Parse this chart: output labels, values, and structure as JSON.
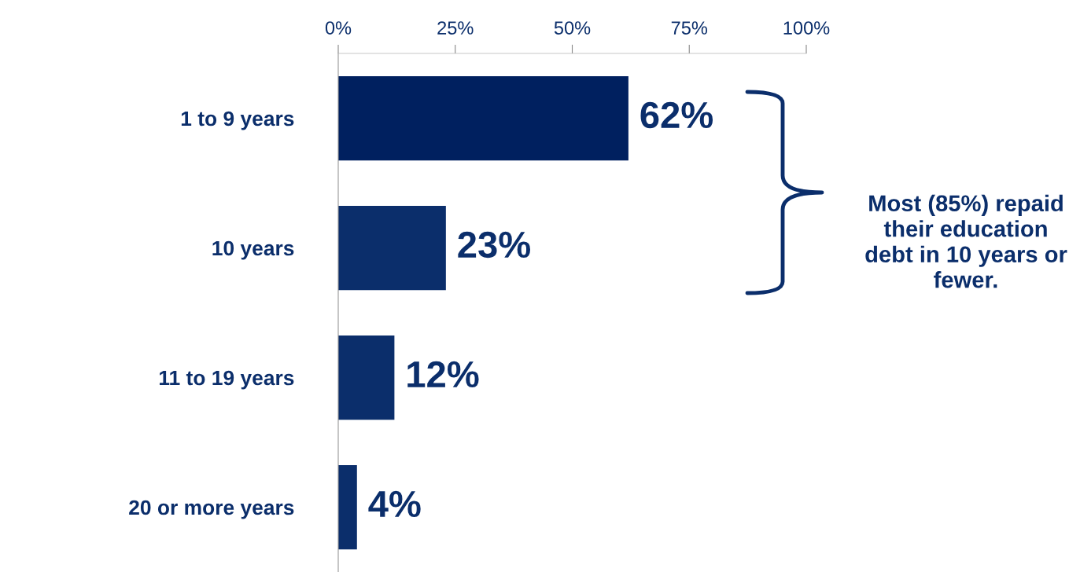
{
  "chart_data": {
    "type": "bar",
    "orientation": "horizontal",
    "categories": [
      "1 to 9 years",
      "10 years",
      "11 to 19 years",
      "20 or more years"
    ],
    "values": [
      62,
      23,
      12,
      4
    ],
    "colors": [
      "#00205f",
      "#0b2e6b",
      "#0b2e6b",
      "#0b2e6b"
    ],
    "value_labels": [
      "62%",
      "23%",
      "12%",
      "4%"
    ],
    "xlim": [
      0,
      100
    ],
    "xticks": [
      {
        "value": 0,
        "label": "0%"
      },
      {
        "value": 25,
        "label": "25%"
      },
      {
        "value": 50,
        "label": "50%"
      },
      {
        "value": 75,
        "label": "75%"
      },
      {
        "value": 100,
        "label": "100%"
      }
    ],
    "annotations": [
      "Most (85%) repaid their education debt in 10 years or fewer."
    ],
    "grid": false,
    "legend": false
  }
}
